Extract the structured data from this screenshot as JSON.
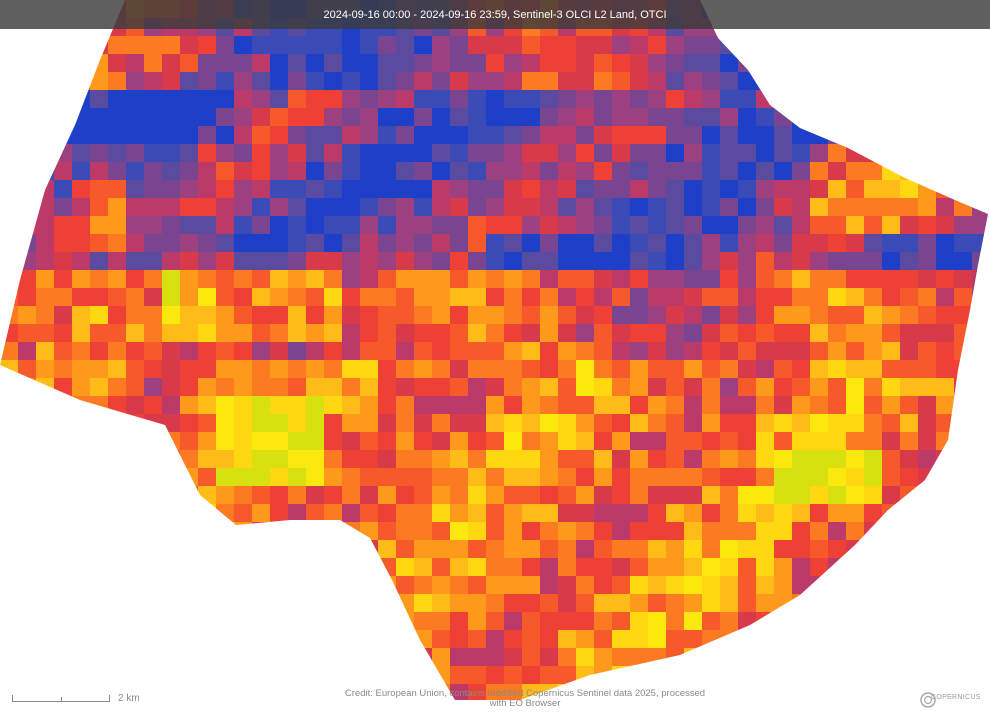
{
  "header": {
    "title": "2024-09-16 00:00 - 2024-09-16 23:59, Sentinel-3 OLCI L2 Land, OTCI"
  },
  "scale": {
    "label": "2 km"
  },
  "credit": {
    "line1": "Credit: European Union, contains modified Copernicus Sentinel data 2025, processed",
    "line2": "with EO Browser"
  },
  "logo": {
    "text": "COPERNICUS",
    "icon": "copernicus-logo"
  },
  "colors": {
    "header_bg": "#3c3c3c",
    "palette": [
      "#1e3fc8",
      "#3a4bb8",
      "#5a4aa0",
      "#7a4590",
      "#9c4080",
      "#bc3a6a",
      "#d83a4a",
      "#ee4034",
      "#f75a2a",
      "#fb7a22",
      "#fd9a1c",
      "#ffbc18",
      "#ffd812",
      "#fbe80c",
      "#d8e010"
    ]
  },
  "map": {
    "layer": "OTCI",
    "satellite": "Sentinel-3 OLCI L2 Land"
  }
}
